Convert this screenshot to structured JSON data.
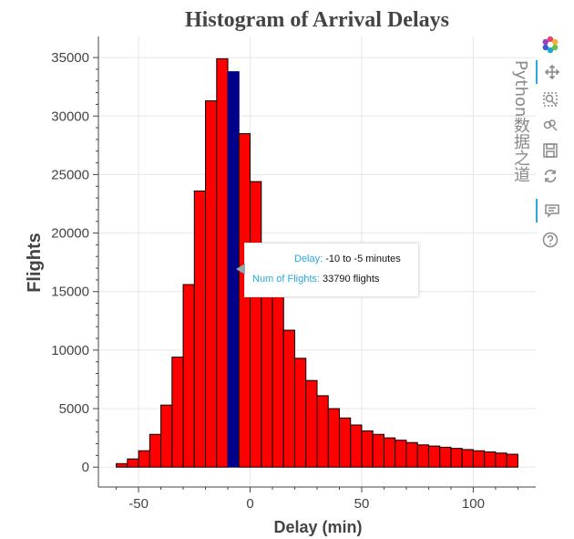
{
  "chart_data": {
    "type": "bar",
    "title": "Histogram of Arrival Delays",
    "xlabel": "Delay (min)",
    "ylabel": "Flights",
    "xlim": [
      -68,
      128
    ],
    "ylim": [
      -1700,
      36800
    ],
    "x_ticks": [
      -50,
      0,
      50,
      100
    ],
    "y_ticks": [
      0,
      5000,
      10000,
      15000,
      20000,
      25000,
      30000,
      35000
    ],
    "grid": true,
    "bar_color": "#ff0000",
    "highlight_color": "#00008b",
    "bin_width": 5,
    "bins_left": [
      -60,
      -55,
      -50,
      -45,
      -40,
      -35,
      -30,
      -25,
      -20,
      -15,
      -10,
      -5,
      0,
      5,
      10,
      15,
      20,
      25,
      30,
      35,
      40,
      45,
      50,
      55,
      60,
      65,
      70,
      75,
      80,
      85,
      90,
      95,
      100,
      105,
      110,
      115
    ],
    "values": [
      300,
      700,
      1400,
      2800,
      5300,
      9400,
      15600,
      23600,
      31300,
      34900,
      33790,
      28500,
      24400,
      19100,
      15000,
      11700,
      9300,
      7400,
      6100,
      5000,
      4200,
      3600,
      3100,
      2800,
      2500,
      2300,
      2100,
      1900,
      1800,
      1700,
      1600,
      1500,
      1400,
      1300,
      1200,
      1100
    ],
    "highlight_index": 10
  },
  "tooltip": {
    "delay_key": "Delay:",
    "delay_value": "-10 to -5 minutes",
    "flights_key": "Num of Flights:",
    "flights_value": "33790 flights"
  },
  "watermark": "Python数据之道",
  "toolbar": {
    "tools": [
      "bokeh-logo-icon",
      "pan-icon",
      "box-zoom-icon",
      "wheel-zoom-icon",
      "save-icon",
      "reset-icon",
      "hover-icon",
      "help-icon"
    ]
  }
}
